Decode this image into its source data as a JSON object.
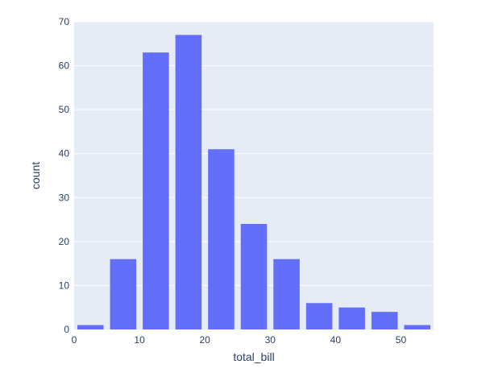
{
  "chart_data": {
    "type": "bar",
    "xlabel": "total_bill",
    "ylabel": "count",
    "xlim": [
      0,
      55
    ],
    "ylim": [
      0,
      70
    ],
    "x_ticks": [
      0,
      10,
      20,
      30,
      40,
      50
    ],
    "y_ticks": [
      0,
      10,
      20,
      30,
      40,
      50,
      60,
      70
    ],
    "bin_width": 5,
    "bins": [
      {
        "start": 0,
        "end": 5,
        "value": 1
      },
      {
        "start": 5,
        "end": 10,
        "value": 16
      },
      {
        "start": 10,
        "end": 15,
        "value": 63
      },
      {
        "start": 15,
        "end": 20,
        "value": 67
      },
      {
        "start": 20,
        "end": 25,
        "value": 41
      },
      {
        "start": 25,
        "end": 30,
        "value": 24
      },
      {
        "start": 30,
        "end": 35,
        "value": 16
      },
      {
        "start": 35,
        "end": 40,
        "value": 6
      },
      {
        "start": 40,
        "end": 45,
        "value": 5
      },
      {
        "start": 45,
        "end": 50,
        "value": 4
      },
      {
        "start": 50,
        "end": 55,
        "value": 1
      }
    ],
    "grid": true,
    "colors": {
      "bar": "#636efa",
      "plot_background": "#e5ecf6",
      "grid": "#ffffff",
      "text": "#2a3f5f"
    }
  }
}
